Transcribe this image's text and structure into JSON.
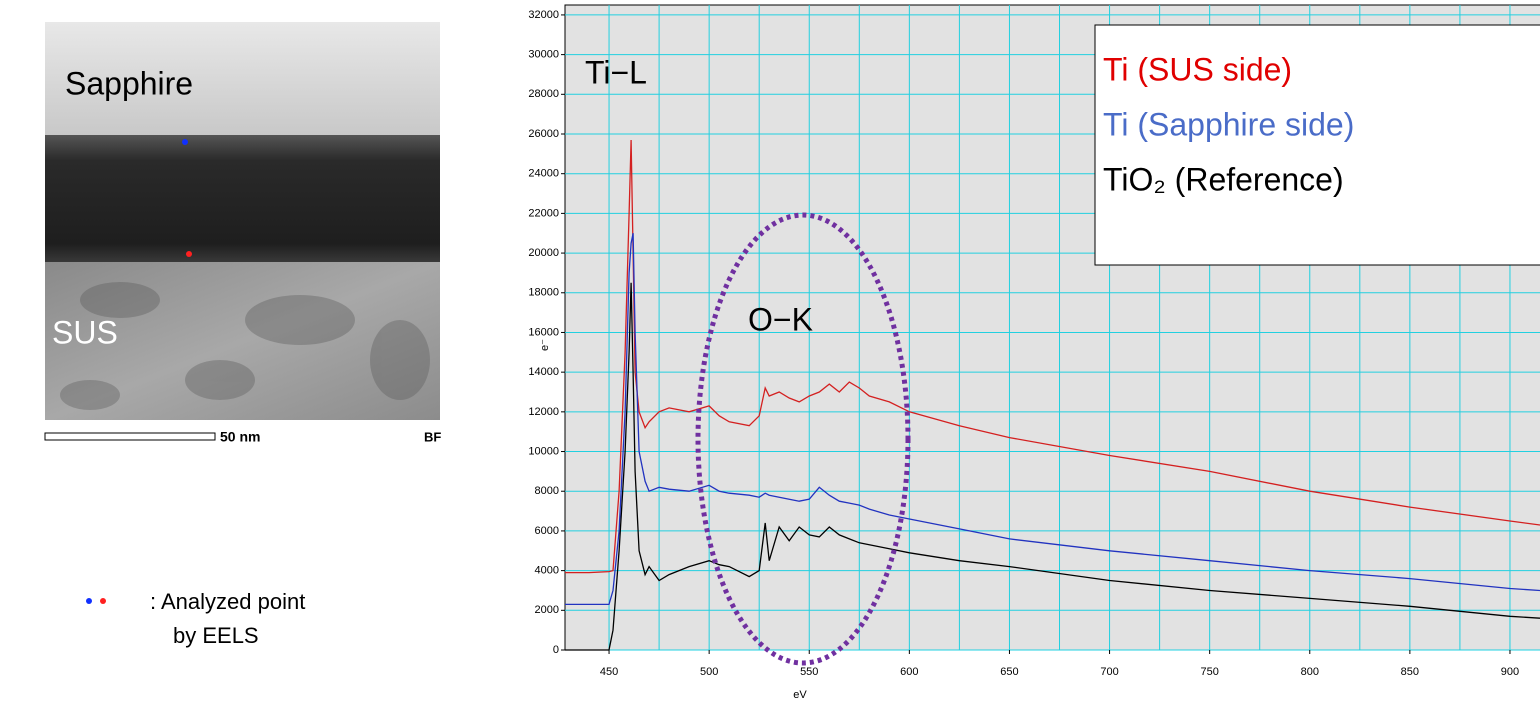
{
  "micrograph": {
    "labels": [
      "Sapphire",
      "SUS"
    ],
    "scale_bar": "50 nm",
    "mode": "BF",
    "caption": [
      ": Analyzed point",
      "by EELS"
    ]
  },
  "chart_data": {
    "type": "line",
    "annotations": [
      "Ti−L",
      "O−K"
    ],
    "xlabel": "eV",
    "ylabel": "e⁻",
    "x": [
      428,
      440,
      450,
      452,
      455,
      458,
      460,
      461,
      462,
      463,
      465,
      468,
      470,
      475,
      480,
      490,
      500,
      505,
      510,
      520,
      525,
      528,
      530,
      535,
      540,
      545,
      550,
      555,
      560,
      565,
      570,
      575,
      580,
      590,
      600,
      625,
      650,
      700,
      750,
      800,
      850,
      900,
      915
    ],
    "series": [
      {
        "name": "Ti (SUS side)",
        "color": "#d42020",
        "label_color": "#e00000",
        "values": [
          3900,
          3900,
          3950,
          4000,
          8000,
          15000,
          22000,
          25700,
          20000,
          14000,
          12000,
          11200,
          11500,
          12000,
          12200,
          12000,
          12300,
          11800,
          11500,
          11300,
          11800,
          13200,
          12800,
          13000,
          12700,
          12500,
          12800,
          13000,
          13400,
          13000,
          13500,
          13200,
          12800,
          12500,
          12000,
          11300,
          10700,
          9800,
          9000,
          8000,
          7200,
          6500,
          6300
        ]
      },
      {
        "name": "Ti (Sapphire side)",
        "color": "#2233c0",
        "label_color": "#4a6cc8",
        "values": [
          2300,
          2300,
          2300,
          3000,
          6000,
          12000,
          19000,
          20500,
          21000,
          16000,
          10000,
          8500,
          8000,
          8200,
          8100,
          8000,
          8300,
          8000,
          7900,
          7800,
          7700,
          7900,
          7800,
          7700,
          7600,
          7500,
          7600,
          8200,
          7800,
          7500,
          7400,
          7300,
          7100,
          6800,
          6600,
          6100,
          5600,
          5000,
          4500,
          4000,
          3600,
          3100,
          3000
        ]
      },
      {
        "name": "TiO₂ (Reference)",
        "color": "#000000",
        "label_color": "#000000",
        "values": [
          0,
          0,
          0,
          1000,
          5000,
          10000,
          15000,
          18500,
          14000,
          9000,
          5000,
          3800,
          4200,
          3500,
          3800,
          4200,
          4500,
          4300,
          4200,
          3700,
          4000,
          6400,
          4500,
          6200,
          5500,
          6200,
          5800,
          5700,
          6200,
          5800,
          5600,
          5400,
          5300,
          5100,
          4900,
          4500,
          4200,
          3500,
          3000,
          2600,
          2200,
          1700,
          1600
        ]
      }
    ],
    "xlim": [
      428,
      915
    ],
    "ylim": [
      0,
      32500
    ],
    "xticks": [
      450,
      500,
      550,
      600,
      650,
      700,
      750,
      800,
      850,
      900
    ],
    "xgrid": [
      450,
      475,
      500,
      525,
      550,
      575,
      600,
      625,
      650,
      675,
      700,
      725,
      750,
      775,
      800,
      825,
      850,
      875,
      900
    ],
    "yticks": [
      0,
      2000,
      4000,
      6000,
      8000,
      10000,
      12000,
      14000,
      16000,
      18000,
      20000,
      22000,
      24000,
      26000,
      28000,
      30000,
      32000
    ],
    "grid": true,
    "grid_color": "#22d0e0",
    "background": "#e2e2e2"
  }
}
